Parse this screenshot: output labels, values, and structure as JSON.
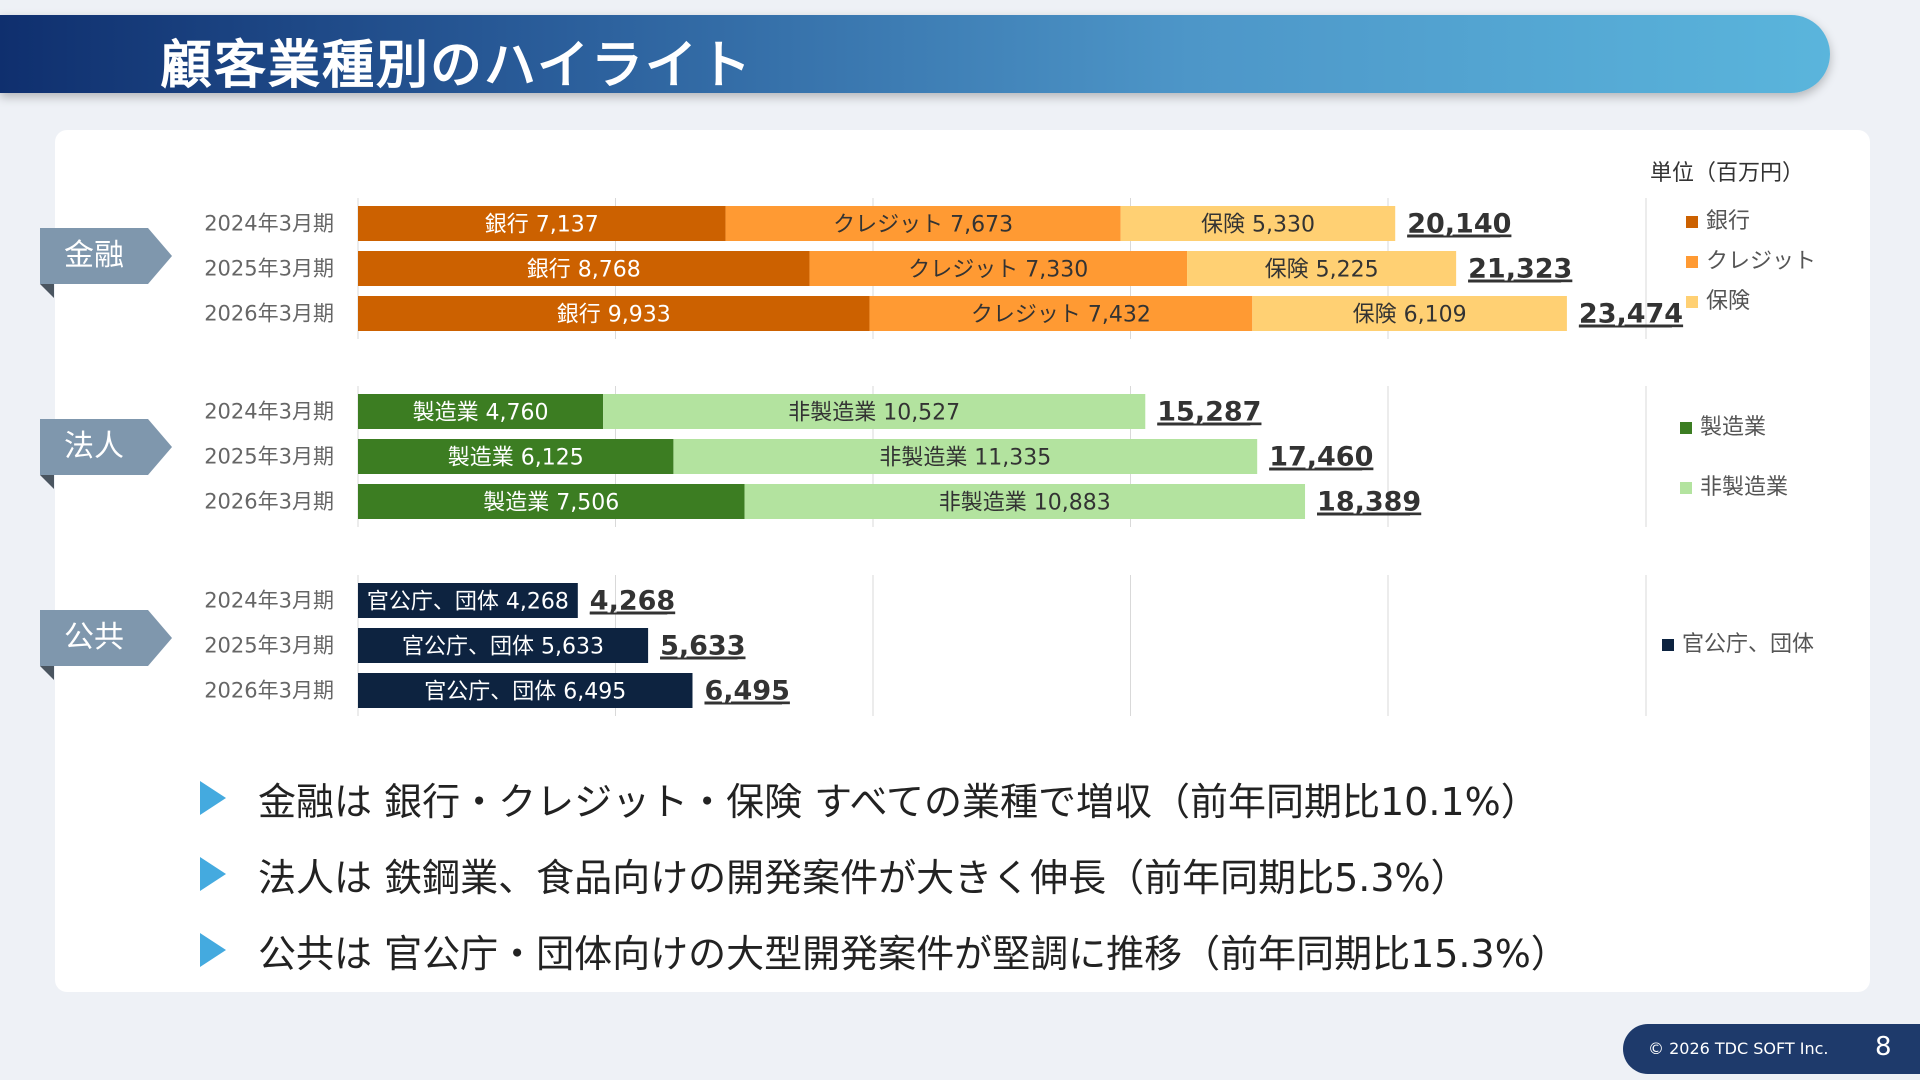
{
  "header": {
    "title": "顧客業種別のハイライト"
  },
  "unit_label": "単位（百万円）",
  "sections": [
    {
      "label": "金融"
    },
    {
      "label": "法人"
    },
    {
      "label": "公共"
    }
  ],
  "chart_data": {
    "type": "bar",
    "orientation": "horizontal",
    "stacked": true,
    "xlim": [
      0,
      25000
    ],
    "grid": true,
    "legend_position": "right",
    "groups": [
      {
        "label": "金融",
        "categories": [
          "2024年3月期",
          "2025年3月期",
          "2026年3月期"
        ],
        "series": [
          {
            "name": "銀行",
            "values": [
              7137,
              8768,
              9933
            ],
            "color": "#cc6100"
          },
          {
            "name": "クレジット",
            "values": [
              7673,
              7330,
              7432
            ],
            "color": "#ff9a33"
          },
          {
            "name": "保険",
            "values": [
              5330,
              5225,
              6109
            ],
            "color": "#ffd073"
          }
        ],
        "segment_labels": [
          [
            "銀行 7,137",
            "クレジット 7,673",
            "保険 5,330"
          ],
          [
            "銀行 8,768",
            "クレジット 7,330",
            "保険 5,225"
          ],
          [
            "銀行 9,933",
            "クレジット 7,432",
            "保険 6,109"
          ]
        ],
        "totals": [
          20140,
          21323,
          23474
        ],
        "total_labels": [
          "20,140",
          "21,323",
          "23,474"
        ]
      },
      {
        "label": "法人",
        "categories": [
          "2024年3月期",
          "2025年3月期",
          "2026年3月期"
        ],
        "series": [
          {
            "name": "製造業",
            "values": [
              4760,
              6125,
              7506
            ],
            "color": "#3c7d22"
          },
          {
            "name": "非製造業",
            "values": [
              10527,
              11335,
              10883
            ],
            "color": "#b3e39f"
          }
        ],
        "segment_labels": [
          [
            "製造業 4,760",
            "非製造業 10,527"
          ],
          [
            "製造業 6,125",
            "非製造業 11,335"
          ],
          [
            "製造業 7,506",
            "非製造業 10,883"
          ]
        ],
        "totals": [
          15287,
          17460,
          18389
        ],
        "total_labels": [
          "15,287",
          "17,460",
          "18,389"
        ]
      },
      {
        "label": "公共",
        "categories": [
          "2024年3月期",
          "2025年3月期",
          "2026年3月期"
        ],
        "series": [
          {
            "name": "官公庁、団体",
            "values": [
              4268,
              5633,
              6495
            ],
            "color": "#0d2340"
          }
        ],
        "segment_labels": [
          [
            "官公庁、団体 4,268"
          ],
          [
            "官公庁、団体 5,633"
          ],
          [
            "官公庁、団体 6,495"
          ]
        ],
        "totals": [
          4268,
          5633,
          6495
        ],
        "total_labels": [
          "4,268",
          "5,633",
          "6,495"
        ]
      }
    ]
  },
  "bullets": [
    "金融は 銀行・クレジット・保険 すべての業種で増収（前年同期比10.1%）",
    "法人は 鉄鋼業、食品向けの開発案件が大きく伸長（前年同期比5.3%）",
    "公共は 官公庁・団体向けの大型開発案件が堅調に推移（前年同期比15.3%）"
  ],
  "footer": {
    "copyright": "© 2026 TDC SOFT Inc.",
    "page": "8"
  }
}
